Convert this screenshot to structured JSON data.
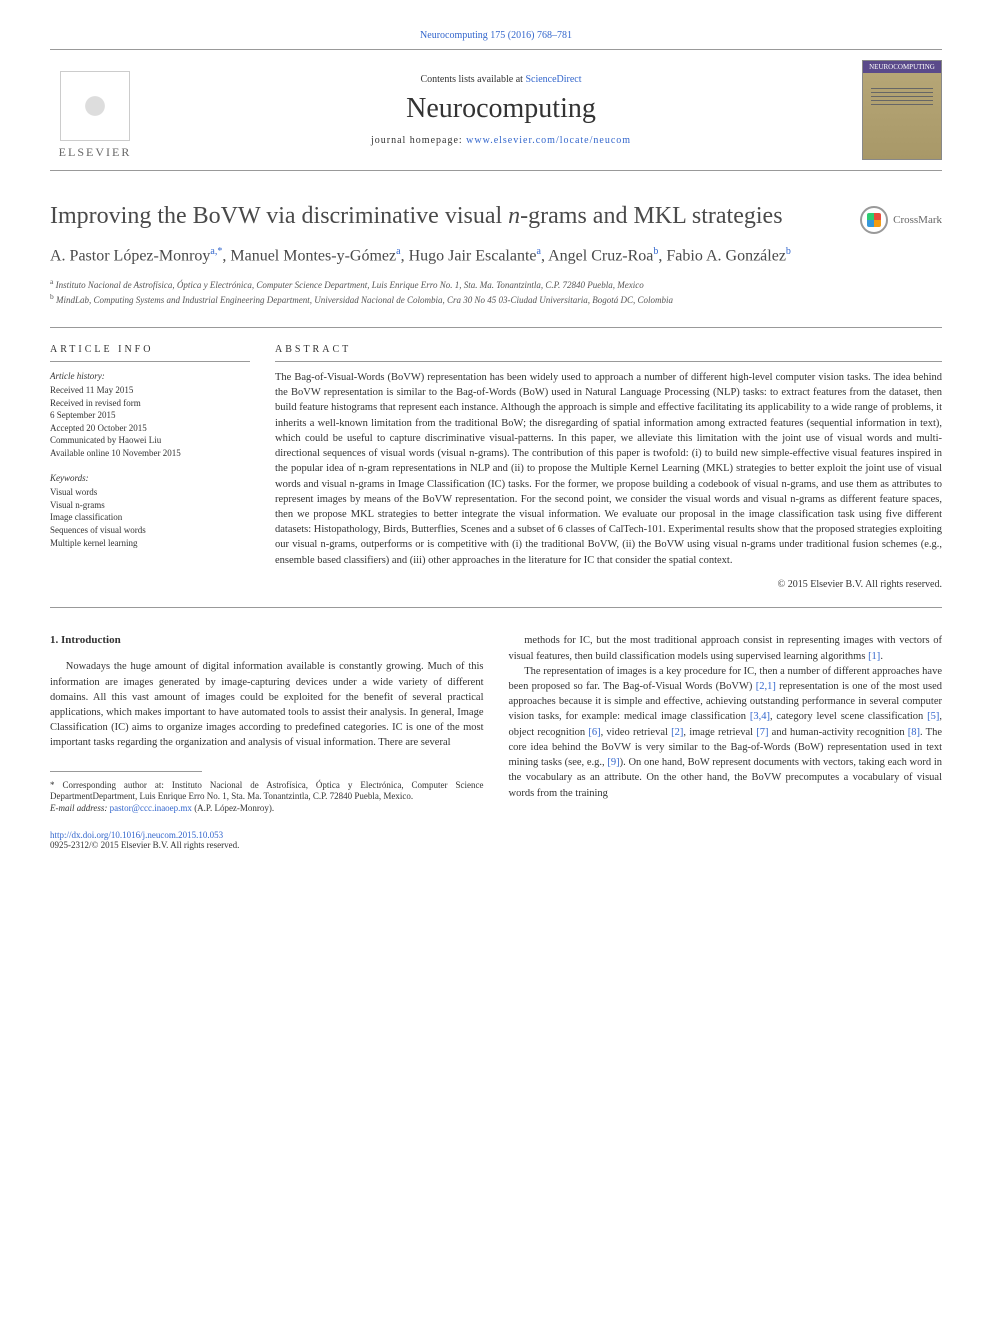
{
  "header": {
    "citation": "Neurocomputing 175 (2016) 768–781",
    "contents_prefix": "Contents lists available at ",
    "contents_link": "ScienceDirect",
    "journal_name": "Neurocomputing",
    "homepage_prefix": "journal homepage: ",
    "homepage_url": "www.elsevier.com/locate/neucom",
    "elsevier": "ELSEVIER",
    "crossmark": "CrossMark"
  },
  "article": {
    "title_line1": "Improving the BoVW via discriminative visual ",
    "title_italic": "n",
    "title_line2": "-grams and MKL strategies",
    "authors_1": "A. Pastor López-Monroy",
    "authors_1_sup": "a,*",
    "authors_2": ", Manuel Montes-y-Gómez",
    "authors_2_sup": "a",
    "authors_3": ", Hugo Jair Escalante",
    "authors_3_sup": "a",
    "authors_4": ", Angel Cruz-Roa",
    "authors_4_sup": "b",
    "authors_5": ", Fabio A. González",
    "authors_5_sup": "b",
    "aff_a": "Instituto Nacional de Astrofísica, Óptica y Electrónica, Computer Science Department, Luis Enrique Erro No. 1, Sta. Ma. Tonantzintla, C.P. 72840 Puebla, Mexico",
    "aff_b": "MindLab, Computing Systems and Industrial Engineering Department, Universidad Nacional de Colombia, Cra 30 No 45 03-Ciudad Universitaria, Bogotá DC, Colombia"
  },
  "info": {
    "heading": "ARTICLE INFO",
    "history_label": "Article history:",
    "history_1": "Received 11 May 2015",
    "history_2": "Received in revised form",
    "history_3": "6 September 2015",
    "history_4": "Accepted 20 October 2015",
    "history_5": "Communicated by Haowei Liu",
    "history_6": "Available online 10 November 2015",
    "keywords_label": "Keywords:",
    "kw_1": "Visual words",
    "kw_2": "Visual n-grams",
    "kw_3": "Image classification",
    "kw_4": "Sequences of visual words",
    "kw_5": "Multiple kernel learning"
  },
  "abstract": {
    "heading": "ABSTRACT",
    "text": "The Bag-of-Visual-Words (BoVW) representation has been widely used to approach a number of different high-level computer vision tasks. The idea behind the BoVW representation is similar to the Bag-of-Words (BoW) used in Natural Language Processing (NLP) tasks: to extract features from the dataset, then build feature histograms that represent each instance. Although the approach is simple and effective facilitating its applicability to a wide range of problems, it inherits a well-known limitation from the traditional BoW; the disregarding of spatial information among extracted features (sequential information in text), which could be useful to capture discriminative visual-patterns. In this paper, we alleviate this limitation with the joint use of visual words and multi-directional sequences of visual words (visual n-grams). The contribution of this paper is twofold: (i) to build new simple-effective visual features inspired in the popular idea of n-gram representations in NLP and (ii) to propose the Multiple Kernel Learning (MKL) strategies to better exploit the joint use of visual words and visual n-grams in Image Classification (IC) tasks. For the former, we propose building a codebook of visual n-grams, and use them as attributes to represent images by means of the BoVW representation. For the second point, we consider the visual words and visual n-grams as different feature spaces, then we propose MKL strategies to better integrate the visual information. We evaluate our proposal in the image classification task using five different datasets: Histopathology, Birds, Butterflies, Scenes and a subset of 6 classes of CalTech-101. Experimental results show that the proposed strategies exploiting our visual n-grams, outperforms or is competitive with (i) the traditional BoVW, (ii) the BoVW using visual n-grams under traditional fusion schemes (e.g., ensemble based classifiers) and (iii) other approaches in the literature for IC that consider the spatial context.",
    "copyright": "© 2015 Elsevier B.V. All rights reserved."
  },
  "body": {
    "intro_heading": "1. Introduction",
    "p1": "Nowadays the huge amount of digital information available is constantly growing. Much of this information are images generated by image-capturing devices under a wide variety of different domains. All this vast amount of images could be exploited for the benefit of several practical applications, which makes important to have automated tools to assist their analysis. In general, Image Classification (IC) aims to organize images according to predefined categories. IC is one of the most important tasks regarding the organization and analysis of visual information. There are several",
    "p2_a": "methods for IC, but the most traditional approach consist in representing images with vectors of visual features, then build classification models using supervised learning algorithms ",
    "p2_ref1": "[1]",
    "p2_b": ".",
    "p3_a": "The representation of images is a key procedure for IC, then a number of different approaches have been proposed so far. The Bag-of-Visual Words (BoVW) ",
    "p3_ref1": "[2,1]",
    "p3_b": " representation is one of the most used approaches because it is simple and effective, achieving outstanding performance in several computer vision tasks, for example: medical image classification ",
    "p3_ref2": "[3,4]",
    "p3_c": ", category level scene classification ",
    "p3_ref3": "[5]",
    "p3_d": ", object recognition ",
    "p3_ref4": "[6]",
    "p3_e": ", video retrieval ",
    "p3_ref5": "[2]",
    "p3_f": ", image retrieval ",
    "p3_ref6": "[7]",
    "p3_g": " and human-activity recognition ",
    "p3_ref7": "[8]",
    "p3_h": ". The core idea behind the BoVW is very similar to the Bag-of-Words (BoW) representation used in text mining tasks (see, e.g., ",
    "p3_ref8": "[9]",
    "p3_i": "). On one hand, BoW represent documents with vectors, taking each word in the vocabulary as an attribute. On the other hand, the BoVW precomputes a vocabulary of visual words from the training"
  },
  "footnote": {
    "corr_prefix": "* Corresponding author at: Instituto Nacional de Astrofísica, Óptica y Electrónica, Computer Science DepartmentDepartment, Luis Enrique Erro No. 1, Sta. Ma. Tonantzintla, C.P. 72840 Puebla, Mexico.",
    "email_label": "E-mail address: ",
    "email": "pastor@ccc.inaoep.mx",
    "email_suffix": " (A.P. López-Monroy)."
  },
  "doi": {
    "url": "http://dx.doi.org/10.1016/j.neucom.2015.10.053",
    "issn": "0925-2312/© 2015 Elsevier B.V. All rights reserved."
  },
  "colors": {
    "link": "#3366cc",
    "text": "#333333",
    "heading": "#4a4a4a",
    "rule": "#999999",
    "cover_bg": "#b8a878",
    "cover_title": "#5a4a8a"
  }
}
